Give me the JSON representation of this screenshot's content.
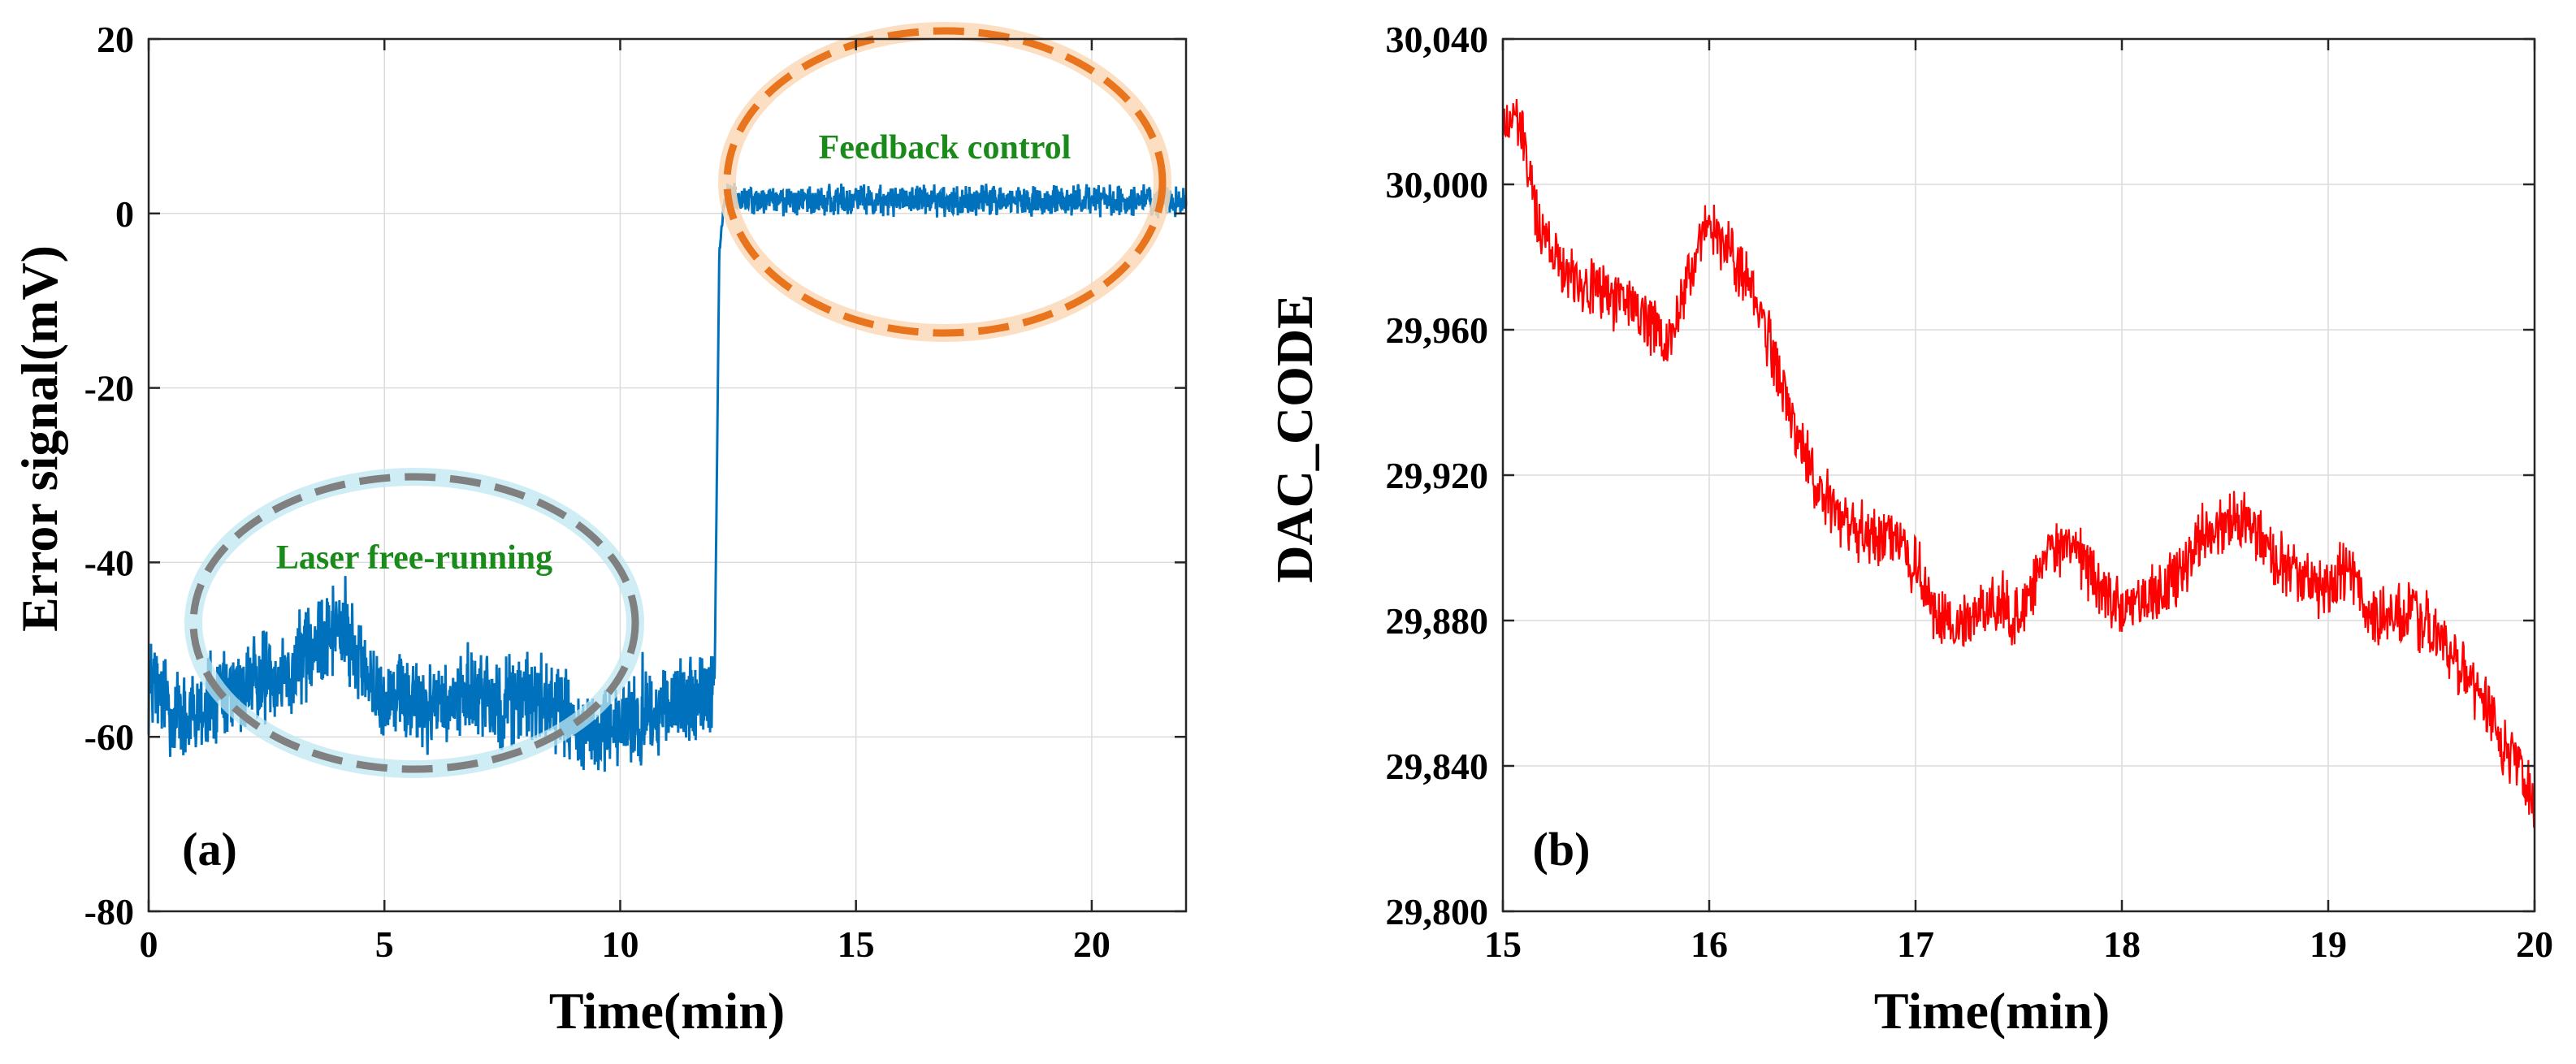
{
  "chart_data": [
    {
      "panel": "(a)",
      "type": "line",
      "xlabel": "Time(min)",
      "ylabel": "Error signal(mV)",
      "xlim": [
        0,
        22
      ],
      "ylim": [
        -80,
        20
      ],
      "xticks": [
        0,
        5,
        10,
        15,
        20
      ],
      "xtick_labels": [
        "0",
        "5",
        "10",
        "15",
        "20"
      ],
      "yticks": [
        20,
        0,
        -20,
        -40,
        -60,
        -80
      ],
      "ytick_labels": [
        "20",
        "0",
        "-20",
        "-40",
        "-60",
        "-80"
      ],
      "grid": true,
      "series": [
        {
          "name": "Error signal",
          "color": "#0072BD",
          "x": [
            0,
            0.5,
            1,
            1.5,
            2,
            2.5,
            3,
            3.5,
            4,
            4.5,
            5,
            5.5,
            6,
            6.5,
            7,
            7.5,
            8,
            8.5,
            9,
            9.5,
            10,
            10.5,
            11,
            11.5,
            12,
            12.05,
            12.1,
            12.2,
            13,
            14,
            15,
            16,
            17,
            18,
            19,
            20,
            21,
            22
          ],
          "y": [
            -54,
            -57,
            -58,
            -56,
            -55,
            -53,
            -52,
            -50,
            -47,
            -52,
            -55,
            -56,
            -57,
            -56,
            -55,
            -56,
            -55,
            -56,
            -58,
            -60,
            -59,
            -58,
            -57,
            -56,
            -55,
            -30,
            -5,
            1.5,
            1.5,
            1.5,
            1.5,
            1.5,
            1.5,
            1.5,
            1.5,
            1.5,
            1.5,
            1.5
          ]
        }
      ],
      "annotations": [
        {
          "text": "Laser free-running",
          "color": "#1a8a1a",
          "ellipse_color": "#808080"
        },
        {
          "text": "Feedback control",
          "color": "#1a8a1a",
          "ellipse_color": "#E8741E"
        }
      ]
    },
    {
      "panel": "(b)",
      "type": "line",
      "xlabel": "Time(min)",
      "ylabel": "DAC_CODE",
      "xlim": [
        15,
        20
      ],
      "ylim": [
        29800,
        30040
      ],
      "xticks": [
        15,
        16,
        17,
        18,
        19,
        20
      ],
      "xtick_labels": [
        "15",
        "16",
        "17",
        "18",
        "19",
        "20"
      ],
      "yticks": [
        30040,
        30000,
        29960,
        29920,
        29880,
        29840,
        29800
      ],
      "ytick_labels": [
        "30,040",
        "30,000",
        "29,960",
        "29,920",
        "29,880",
        "29,840",
        "29,800"
      ],
      "grid": true,
      "series": [
        {
          "name": "DAC_CODE",
          "color": "#FF0000",
          "x": [
            15,
            15.05,
            15.1,
            15.15,
            15.2,
            15.3,
            15.4,
            15.5,
            15.6,
            15.7,
            15.8,
            15.9,
            16,
            16.1,
            16.2,
            16.3,
            16.4,
            16.5,
            16.6,
            16.7,
            16.8,
            16.9,
            17,
            17.1,
            17.2,
            17.3,
            17.4,
            17.5,
            17.6,
            17.7,
            17.8,
            17.9,
            18,
            18.1,
            18.2,
            18.3,
            18.4,
            18.5,
            18.6,
            18.7,
            18.8,
            18.9,
            19,
            19.1,
            19.2,
            19.3,
            19.4,
            19.5,
            19.6,
            19.7,
            19.8,
            19.9,
            20
          ],
          "y": [
            30015,
            30020,
            30012,
            29995,
            29985,
            29978,
            29972,
            29970,
            29968,
            29962,
            29955,
            29975,
            29988,
            29982,
            29972,
            29955,
            29935,
            29920,
            29910,
            29905,
            29902,
            29905,
            29895,
            29880,
            29878,
            29882,
            29885,
            29880,
            29895,
            29900,
            29898,
            29888,
            29885,
            29885,
            29888,
            29895,
            29905,
            29905,
            29908,
            29900,
            29895,
            29890,
            29888,
            29895,
            29882,
            29880,
            29882,
            29878,
            29870,
            29862,
            29852,
            29840,
            29830
          ]
        }
      ]
    }
  ]
}
